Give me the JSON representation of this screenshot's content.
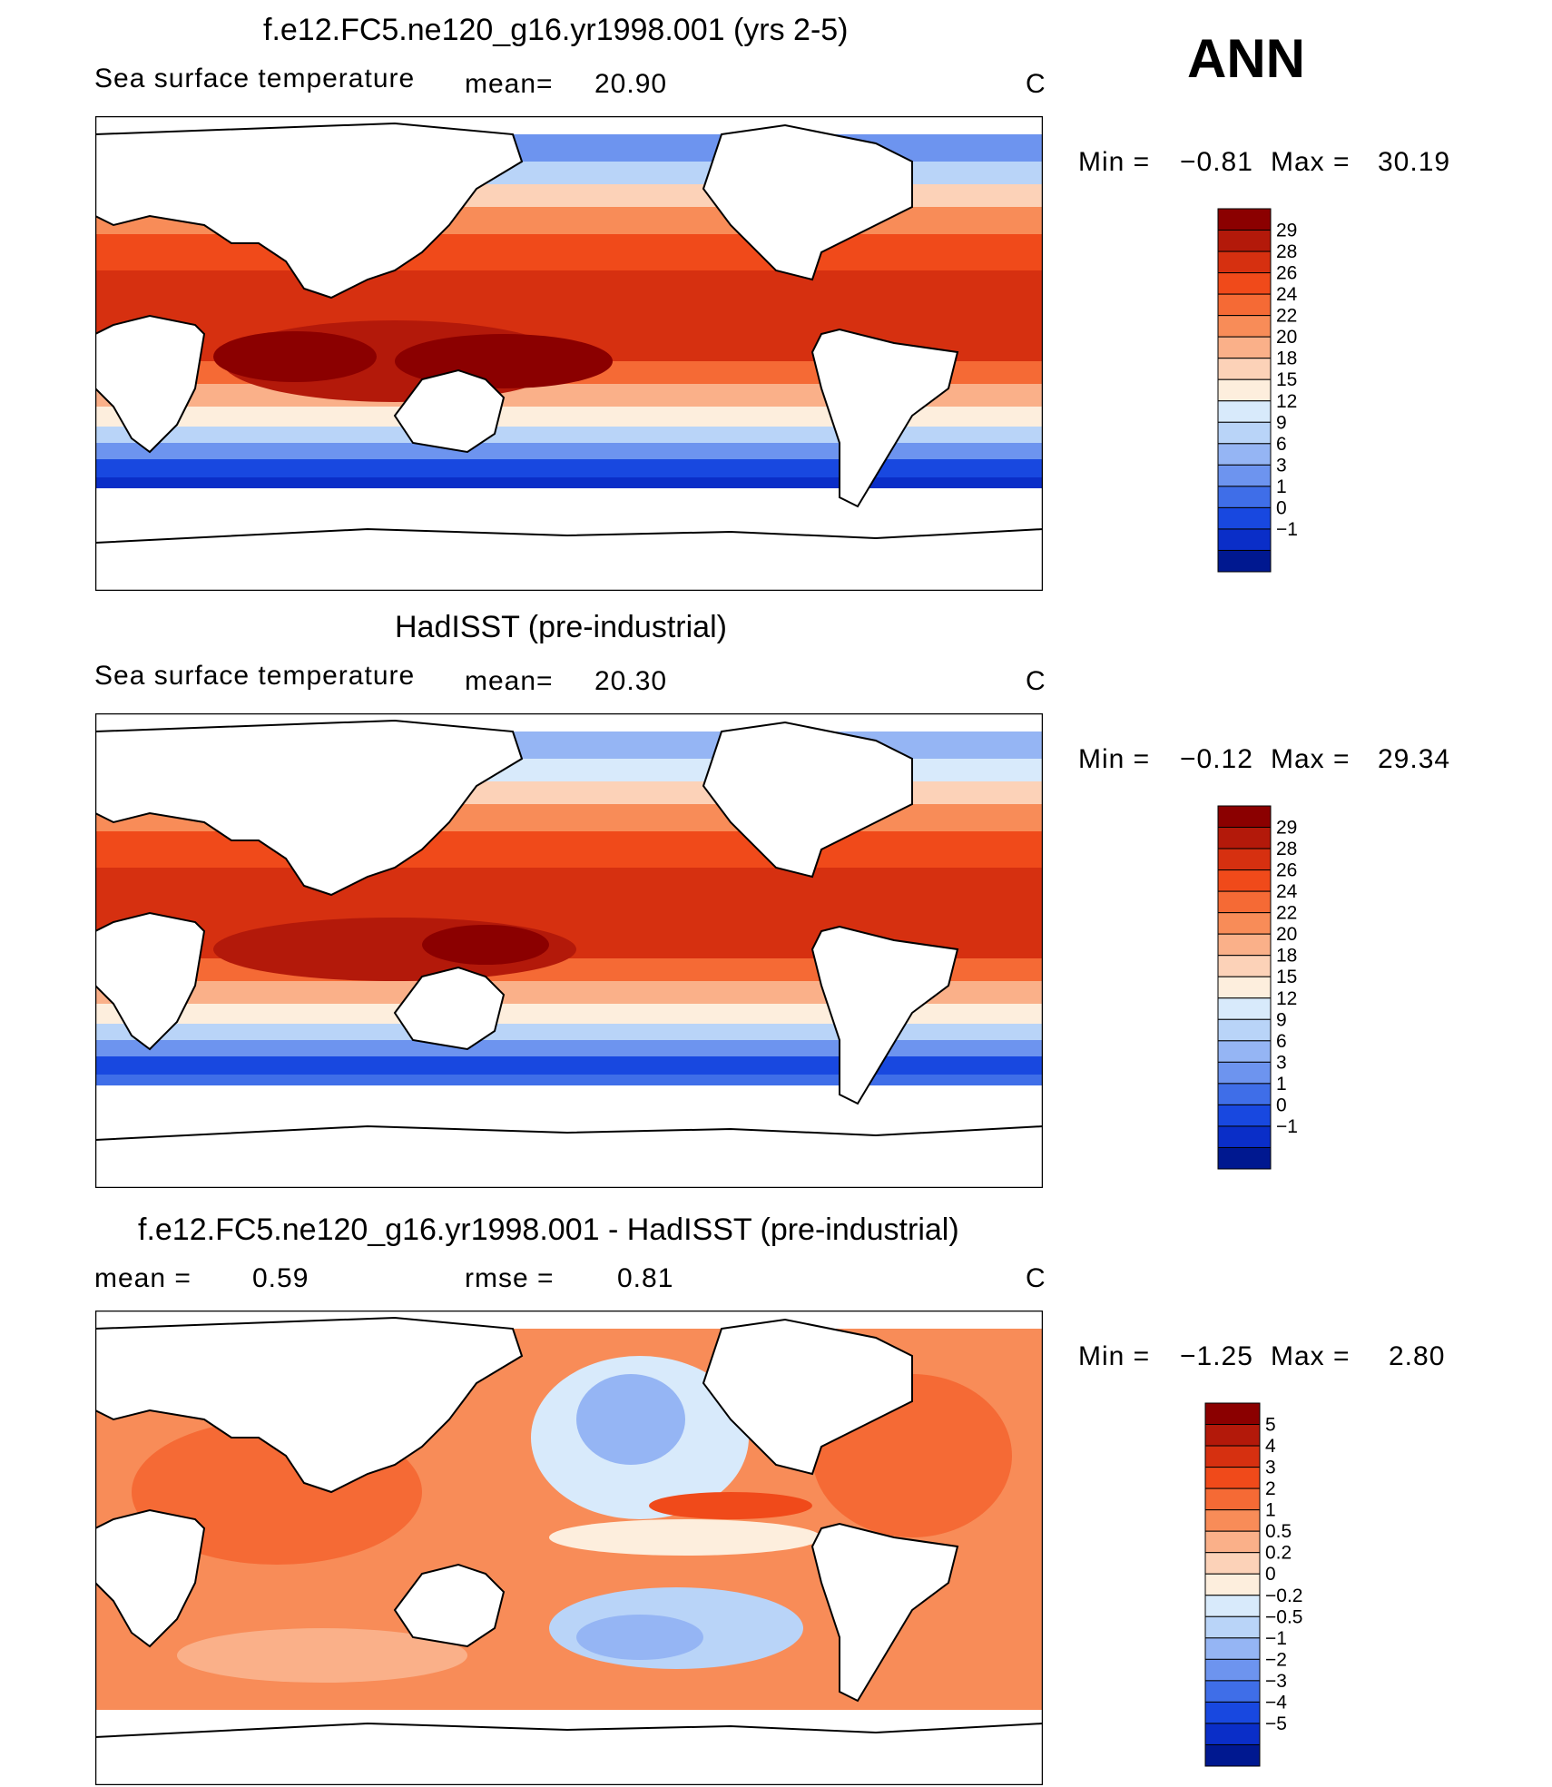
{
  "season": "ANN",
  "panels": [
    {
      "title": "f.e12.FC5.ne120_g16.yr1998.001 (yrs 2-5)",
      "variable": "Sea surface temperature",
      "mean_label": "mean=",
      "mean_value": "20.90",
      "units": "C",
      "min_label": "Min =",
      "min_value": "−0.81",
      "max_label": "Max =",
      "max_value": "30.19",
      "colorbar": {
        "labels": [
          "29",
          "28",
          "26",
          "24",
          "22",
          "20",
          "18",
          "15",
          "12",
          "9",
          "6",
          "3",
          "1",
          "0",
          "−1"
        ],
        "colors": [
          "#8b0000",
          "#b3190a",
          "#d63010",
          "#f04a1a",
          "#f56a35",
          "#f88c58",
          "#fab089",
          "#fcd2b8",
          "#fdeedd",
          "#d8eafb",
          "#b9d4f8",
          "#95b5f4",
          "#6d94ef",
          "#3f6ee8",
          "#1848e0",
          "#0a2ec8",
          "#001890"
        ]
      }
    },
    {
      "title": "HadISST (pre-industrial)",
      "variable": "Sea surface temperature",
      "mean_label": "mean=",
      "mean_value": "20.30",
      "units": "C",
      "min_label": "Min =",
      "min_value": "−0.12",
      "max_label": "Max =",
      "max_value": "29.34",
      "colorbar": {
        "labels": [
          "29",
          "28",
          "26",
          "24",
          "22",
          "20",
          "18",
          "15",
          "12",
          "9",
          "6",
          "3",
          "1",
          "0",
          "−1"
        ],
        "colors": [
          "#8b0000",
          "#b3190a",
          "#d63010",
          "#f04a1a",
          "#f56a35",
          "#f88c58",
          "#fab089",
          "#fcd2b8",
          "#fdeedd",
          "#d8eafb",
          "#b9d4f8",
          "#95b5f4",
          "#6d94ef",
          "#3f6ee8",
          "#1848e0",
          "#0a2ec8",
          "#001890"
        ]
      }
    },
    {
      "title": "f.e12.FC5.ne120_g16.yr1998.001 - HadISST (pre-industrial)",
      "mean_label": "mean =",
      "mean_value": "0.59",
      "rmse_label": "rmse =",
      "rmse_value": "0.81",
      "units": "C",
      "min_label": "Min =",
      "min_value": "−1.25",
      "max_label": "Max =",
      "max_value": "2.80",
      "colorbar": {
        "labels": [
          "5",
          "4",
          "3",
          "2",
          "1",
          "0.5",
          "0.2",
          "0",
          "−0.2",
          "−0.5",
          "−1",
          "−2",
          "−3",
          "−4",
          "−5"
        ],
        "colors": [
          "#8b0000",
          "#b3190a",
          "#d63010",
          "#f04a1a",
          "#f56a35",
          "#f88c58",
          "#fab089",
          "#fcd2b8",
          "#fdeedd",
          "#d8eafb",
          "#b9d4f8",
          "#95b5f4",
          "#6d94ef",
          "#3f6ee8",
          "#1848e0",
          "#0a2ec8",
          "#001890"
        ]
      }
    }
  ]
}
